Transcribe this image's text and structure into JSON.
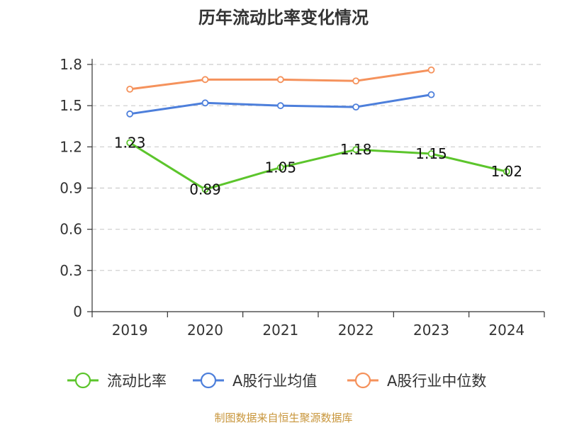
{
  "chart_data": {
    "type": "line",
    "title": "历年流动比率变化情况",
    "categories": [
      "2019",
      "2020",
      "2021",
      "2022",
      "2023",
      "2024"
    ],
    "ylim": [
      0,
      1.8
    ],
    "yticks": [
      "0",
      "0.3",
      "0.6",
      "0.9",
      "1.2",
      "1.5",
      "1.8"
    ],
    "grid": true,
    "legend_position": "bottom",
    "series": [
      {
        "name": "流动比率",
        "color": "#5cc52c",
        "values": [
          1.23,
          0.89,
          1.05,
          1.18,
          1.15,
          1.02
        ],
        "labels": [
          "1.23",
          "0.89",
          "1.05",
          "1.18",
          "1.15",
          "1.02"
        ],
        "show_labels": true
      },
      {
        "name": "A股行业均值",
        "color": "#4d7fdb",
        "values": [
          1.44,
          1.52,
          1.5,
          1.49,
          1.58,
          null
        ],
        "show_labels": false
      },
      {
        "name": "A股行业中位数",
        "color": "#f5925c",
        "values": [
          1.62,
          1.69,
          1.69,
          1.68,
          1.76,
          null
        ],
        "show_labels": false
      }
    ]
  },
  "source": "制图数据来自恒生聚源数据库"
}
